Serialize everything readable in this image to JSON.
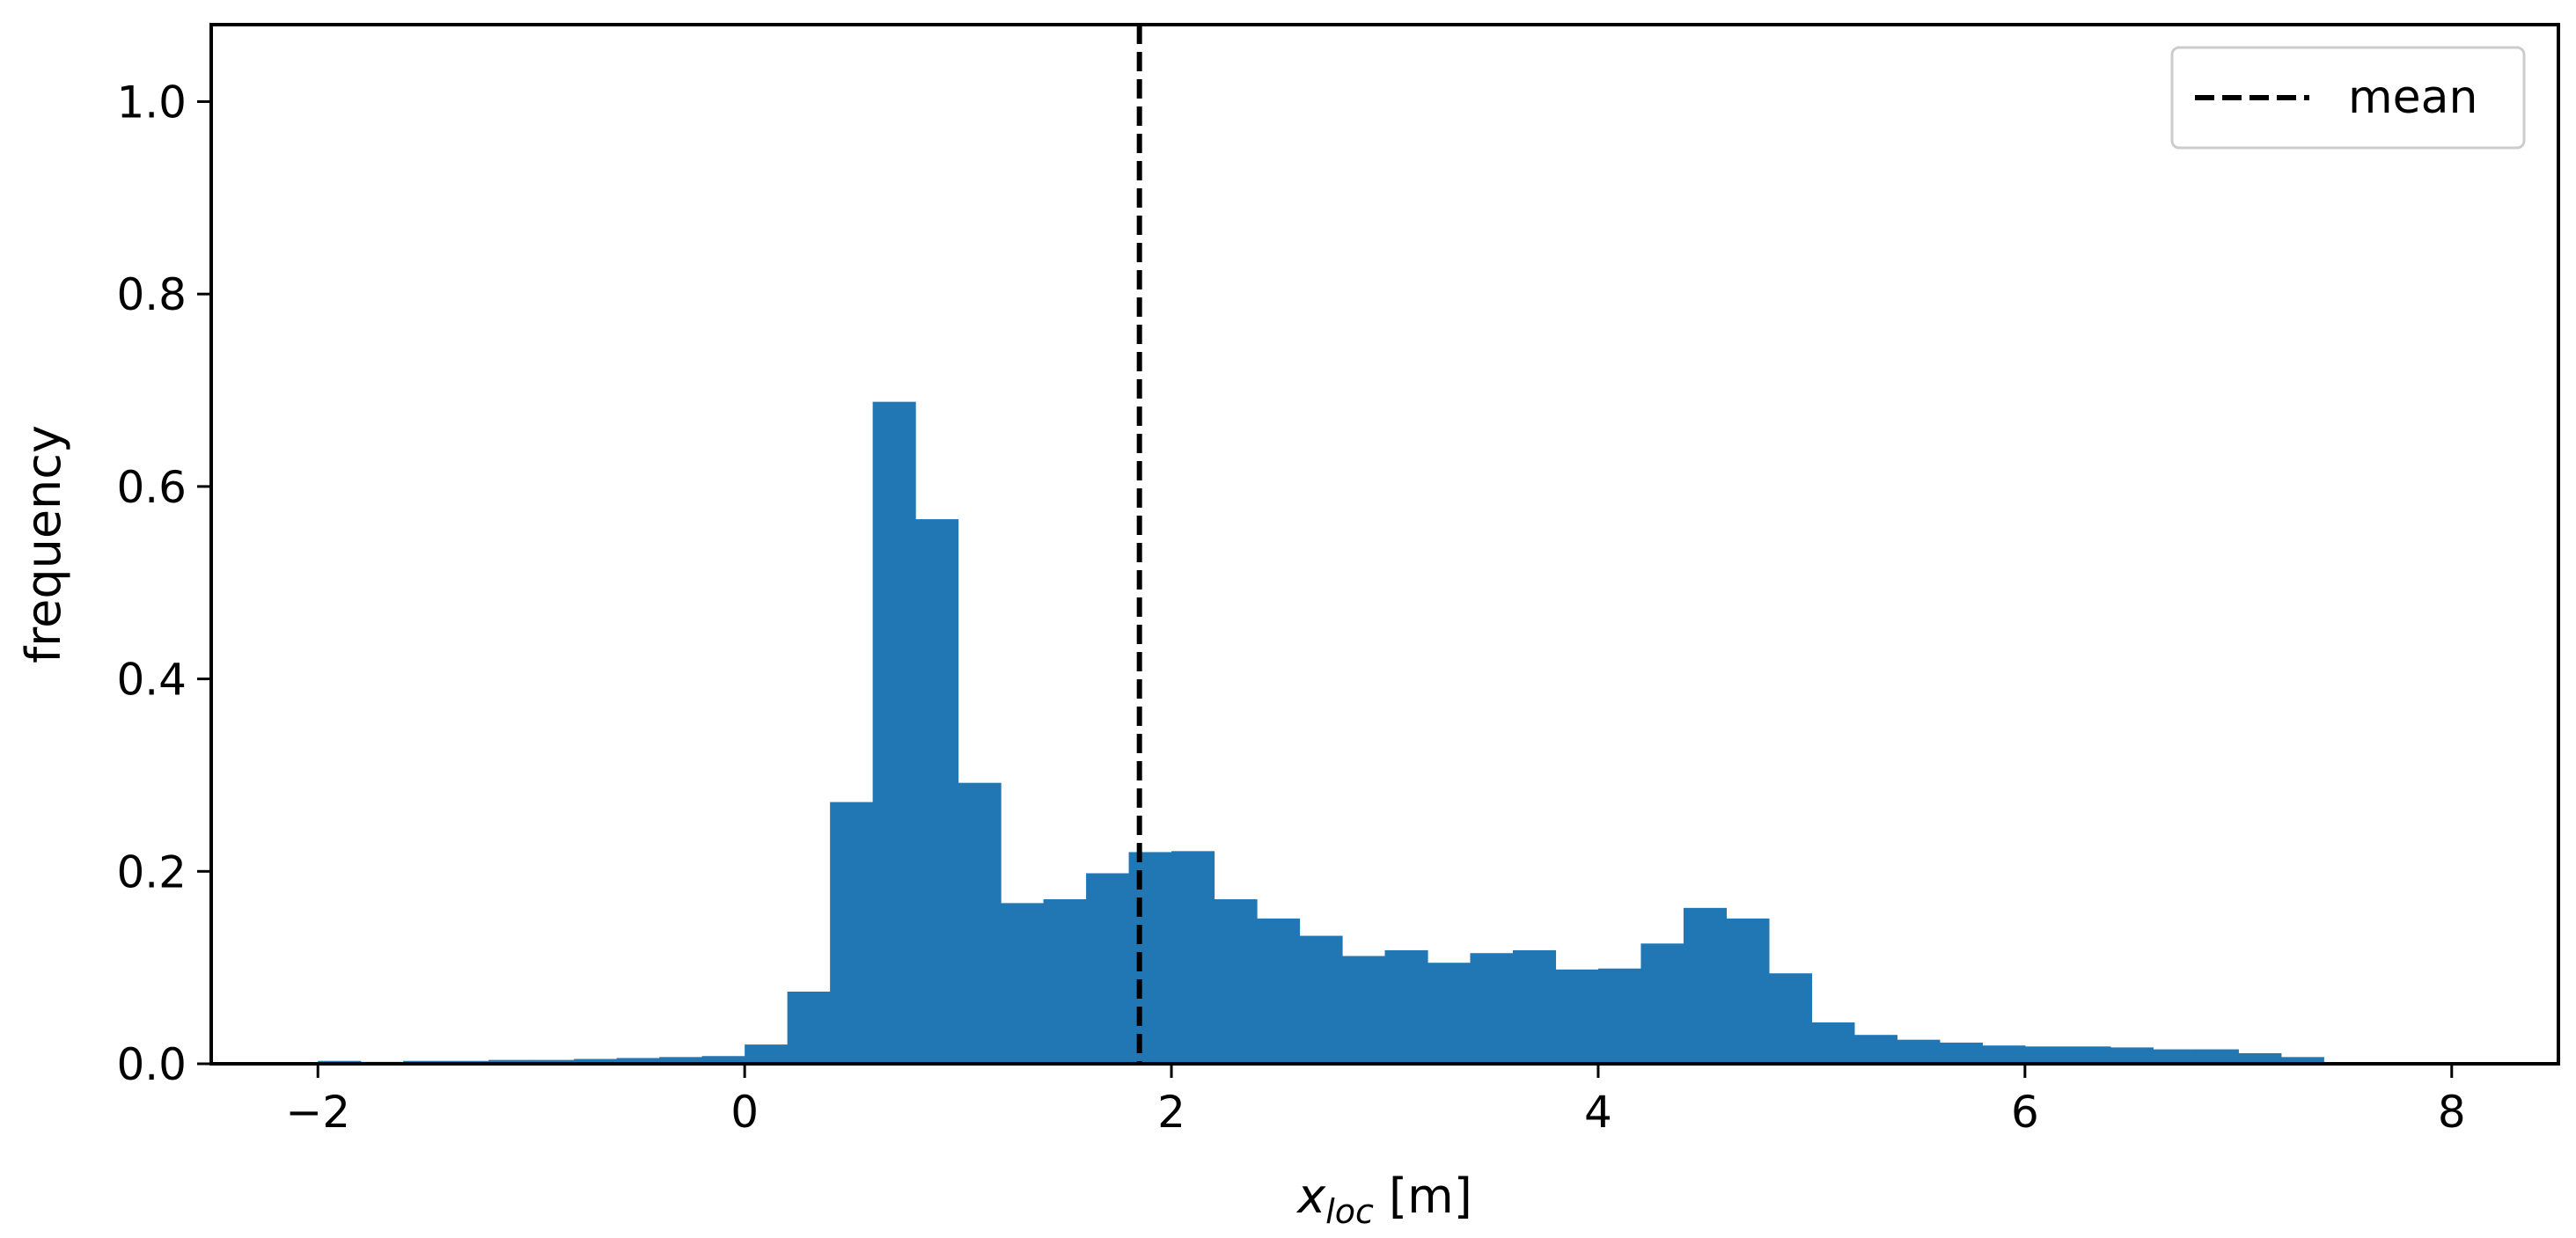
{
  "chart_data": {
    "type": "bar",
    "histogram": true,
    "title": "",
    "xlabel": "x",
    "xlabel_subscript": "loc",
    "xlabel_unit": "[m]",
    "ylabel": "frequency",
    "xlim": [
      -2.5,
      8.5
    ],
    "ylim": [
      0,
      1.08
    ],
    "xticks": [
      -2,
      0,
      2,
      4,
      6,
      8
    ],
    "xtick_labels": [
      "−2",
      "0",
      "2",
      "4",
      "6",
      "8"
    ],
    "yticks": [
      0.0,
      0.2,
      0.4,
      0.6,
      0.8,
      1.0
    ],
    "ytick_labels": [
      "0.0",
      "0.2",
      "0.4",
      "0.6",
      "0.8",
      "1.0"
    ],
    "bin_width": 0.2,
    "bin_edges_start": -2.0,
    "values": [
      0.003,
      0.002,
      0.003,
      0.003,
      0.004,
      0.004,
      0.005,
      0.006,
      0.007,
      0.008,
      0.02,
      0.075,
      0.272,
      0.688,
      0.566,
      0.292,
      0.167,
      0.171,
      0.198,
      0.22,
      0.221,
      0.171,
      0.151,
      0.133,
      0.112,
      0.118,
      0.105,
      0.115,
      0.118,
      0.098,
      0.099,
      0.125,
      0.162,
      0.151,
      0.094,
      0.043,
      0.03,
      0.025,
      0.022,
      0.019,
      0.018,
      0.018,
      0.017,
      0.015,
      0.015,
      0.011,
      0.007
    ],
    "bar_color": "#2077b4",
    "mean_line": {
      "x": 1.85,
      "label": "mean",
      "style": "dashed",
      "color": "#000000"
    },
    "legend": {
      "placement": "top-right",
      "entries": [
        "mean"
      ]
    },
    "grid": false
  }
}
